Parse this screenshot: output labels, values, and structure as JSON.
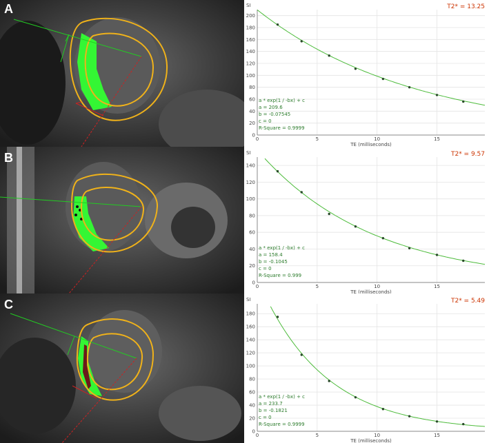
{
  "panels": [
    {
      "letter": "A",
      "t2_label": "T2* = 13.25",
      "fit_lines": [
        "a * exp(1 / -bx) + c",
        "a = 209.6",
        "b = -0.07545",
        "c = 0",
        "R-Square = 0.9999"
      ]
    },
    {
      "letter": "B",
      "t2_label": "T2* = 9.57",
      "fit_lines": [
        "a * exp(1 / -bx) + c",
        "a = 158.4",
        "b = -0.1045",
        "c = 0",
        "R-Square = 0.999"
      ]
    },
    {
      "letter": "C",
      "t2_label": "T2* = 5.49",
      "fit_lines": [
        "a * exp(1 / -bx) + c",
        "a = 233.7",
        "b = -0.1821",
        "c = 0",
        "R-Square = 0.9999"
      ]
    }
  ],
  "chart_data": [
    {
      "type": "scatter",
      "title": "",
      "xlabel": "TE (milliseconds)",
      "ylabel": "SI",
      "xlim": [
        0,
        19
      ],
      "ylim": [
        0,
        210
      ],
      "xticks": [
        0,
        5,
        10,
        15
      ],
      "yticks": [
        0,
        20,
        40,
        60,
        80,
        100,
        120,
        140,
        160,
        180,
        200
      ],
      "grid": true,
      "fit": {
        "a": 209.6,
        "b": -0.07545,
        "c": 0
      },
      "x": [
        1.7,
        3.7,
        6.0,
        8.2,
        10.5,
        12.7,
        15.0,
        17.2
      ],
      "y": [
        185,
        157,
        133,
        111,
        94,
        80,
        67,
        56
      ]
    },
    {
      "type": "scatter",
      "title": "",
      "xlabel": "TE (milliseconds)",
      "ylabel": "SI",
      "xlim": [
        0,
        19
      ],
      "ylim": [
        0,
        150
      ],
      "xticks": [
        0,
        5,
        10,
        15
      ],
      "yticks": [
        0,
        20,
        40,
        60,
        80,
        100,
        120,
        140
      ],
      "grid": true,
      "fit": {
        "a": 158.4,
        "b": -0.1045,
        "c": 0
      },
      "x": [
        1.7,
        3.7,
        6.0,
        8.2,
        10.5,
        12.7,
        15.0,
        17.2
      ],
      "y": [
        133,
        108,
        82,
        67,
        53,
        41,
        33,
        26
      ]
    },
    {
      "type": "scatter",
      "title": "",
      "xlabel": "TE (milliseconds)",
      "ylabel": "SI",
      "xlim": [
        0,
        19
      ],
      "ylim": [
        0,
        195
      ],
      "xticks": [
        0,
        5,
        10,
        15
      ],
      "yticks": [
        0,
        20,
        40,
        60,
        80,
        100,
        120,
        140,
        160,
        180
      ],
      "grid": true,
      "fit": {
        "a": 233.7,
        "b": -0.1821,
        "c": 0
      },
      "x": [
        1.7,
        3.7,
        6.0,
        8.2,
        10.5,
        12.7,
        15.0,
        17.2
      ],
      "y": [
        175,
        117,
        77,
        52,
        34,
        23,
        15,
        11
      ]
    }
  ]
}
